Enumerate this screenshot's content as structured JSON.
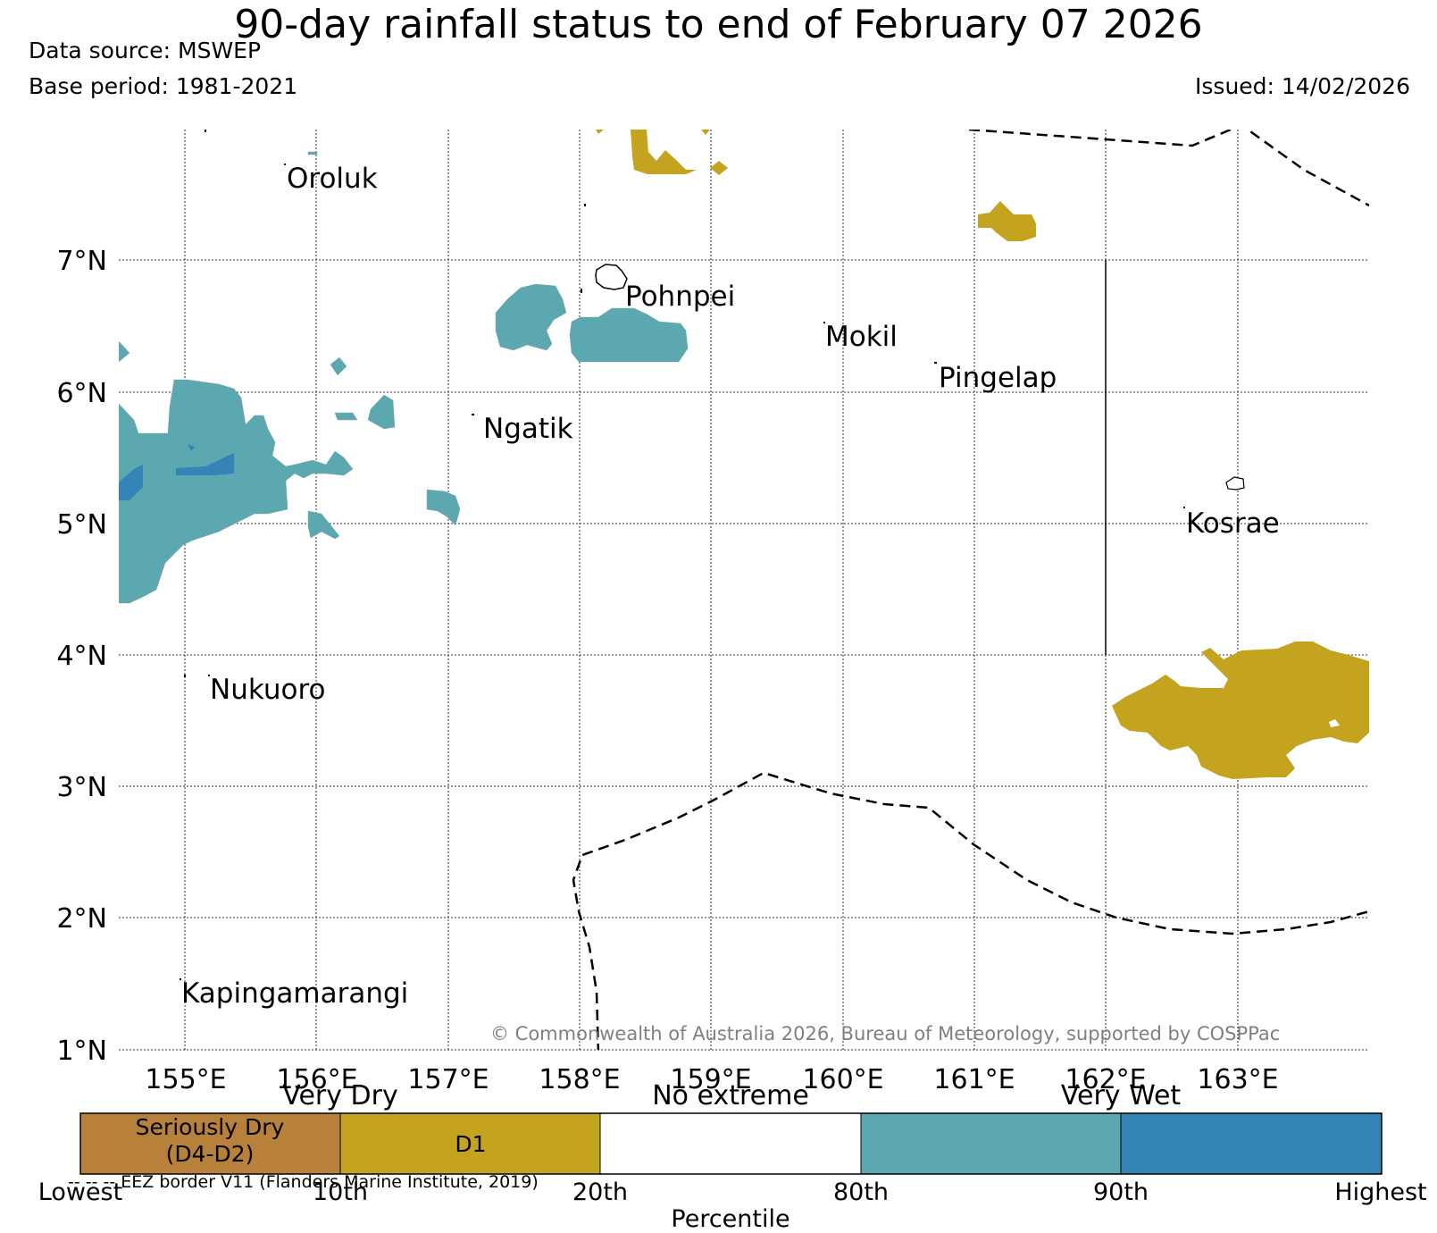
{
  "header": {
    "title": "90-day rainfall status to end of February 07 2026",
    "data_source": "Data source: MSWEP",
    "base_period": "Base period: 1981-2021",
    "issued": "Issued: 14/02/2026"
  },
  "map": {
    "lon_range": [
      154.5,
      164.0
    ],
    "lat_range": [
      1.0,
      8.0
    ],
    "lat_labels": [
      "7°N",
      "6°N",
      "5°N",
      "4°N",
      "3°N",
      "2°N",
      "1°N"
    ],
    "lon_labels": [
      "155°E",
      "156°E",
      "157°E",
      "158°E",
      "159°E",
      "160°E",
      "161°E",
      "162°E",
      "163°E"
    ],
    "islands": [
      {
        "name": "Oroluk"
      },
      {
        "name": "Pohnpei"
      },
      {
        "name": "Mokil"
      },
      {
        "name": "Pingelap"
      },
      {
        "name": "Ngatik"
      },
      {
        "name": "Kosrae"
      },
      {
        "name": "Nukuoro"
      },
      {
        "name": "Kapingamarangi"
      }
    ],
    "copyright": "© Commonwealth of Australia 2026, Bureau of Meteorology, supported by COSPPac"
  },
  "legend": {
    "captions": {
      "dry": "Very Dry",
      "none": "No extreme",
      "wet": "Very Wet"
    },
    "segments": [
      {
        "label_line1": "Seriously Dry",
        "label_line2": "(D4-D2)",
        "color": "#b8813b"
      },
      {
        "label_line1": "D1",
        "label_line2": "",
        "color": "#c4a41f"
      },
      {
        "label_line1": "",
        "label_line2": "",
        "color": "#ffffff"
      },
      {
        "label_line1": "",
        "label_line2": "",
        "color": "#5ba8b0"
      },
      {
        "label_line1": "",
        "label_line2": "",
        "color": "#3584b8"
      }
    ],
    "ticks": [
      "Lowest",
      "10th",
      "20th",
      "80th",
      "90th",
      "Highest"
    ],
    "axis_label": "Percentile"
  },
  "footnote": "-- -- -- EEZ border V11 (Flanders Marine Institute, 2019)",
  "colors": {
    "teal": "#5ba8b0",
    "blue": "#3584b8",
    "d1": "#c4a41f",
    "seriously_dry": "#b8813b"
  }
}
